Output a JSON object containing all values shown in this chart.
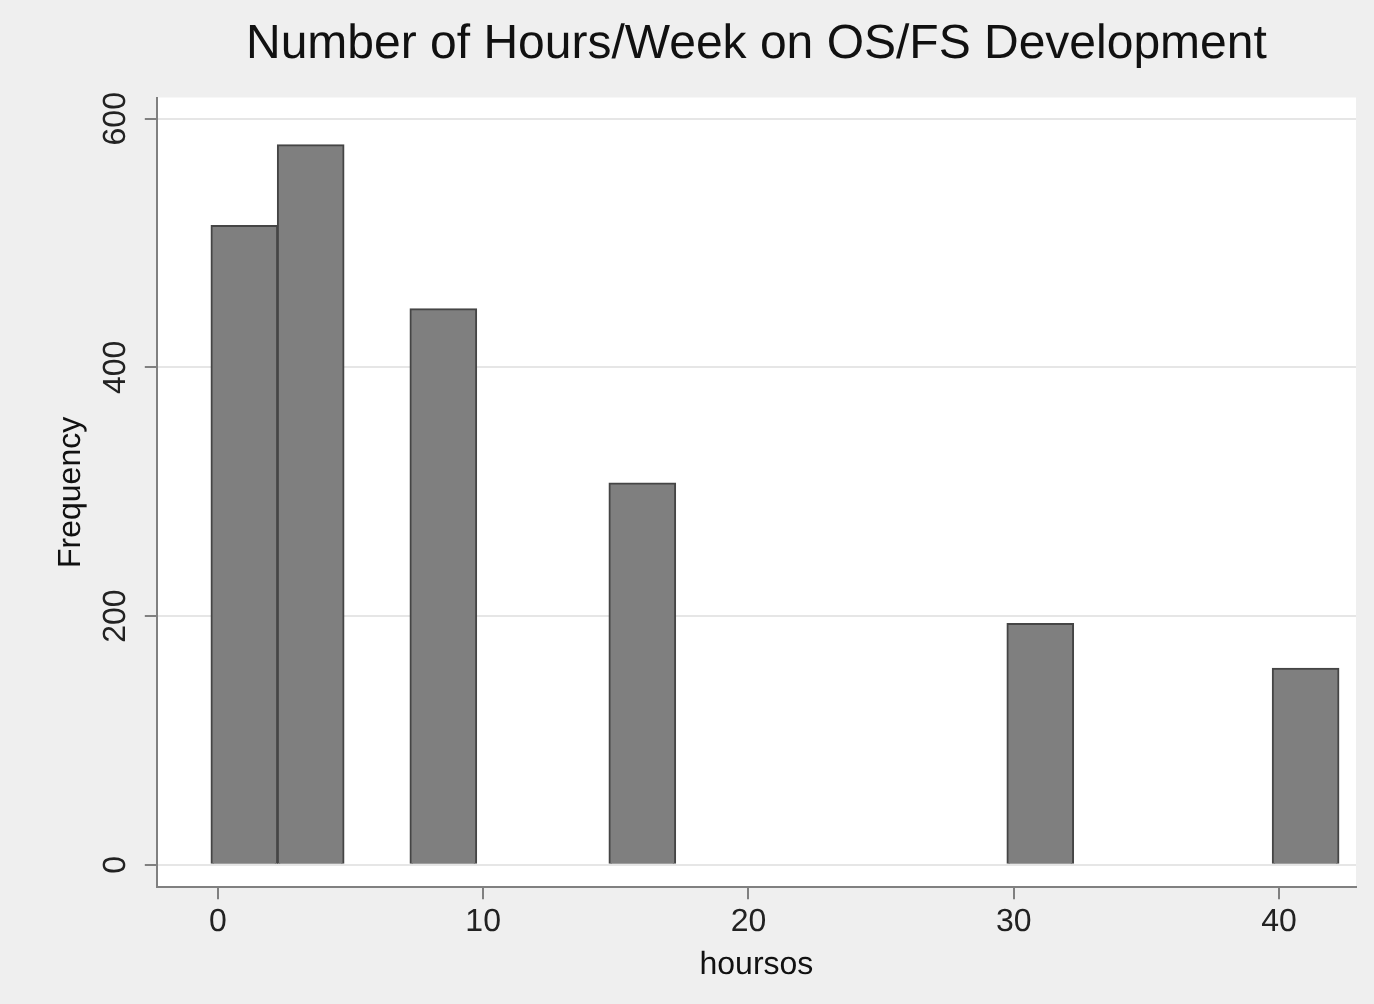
{
  "chart_data": {
    "type": "histogram",
    "title": "Number of Hours/Week on OS/FS Development",
    "xlabel": "hoursos",
    "ylabel": "Frequency",
    "bins": [
      -0.25,
      2.25,
      4.75,
      7.25,
      9.75,
      12.25,
      14.75,
      17.25,
      19.75,
      22.25,
      24.75,
      27.25,
      29.75,
      32.25,
      34.75,
      37.25,
      39.75,
      42.25
    ],
    "values": [
      514,
      579,
      0,
      447,
      0,
      0,
      307,
      0,
      0,
      0,
      0,
      0,
      194,
      0,
      0,
      0,
      158
    ],
    "color": "#7f7f7f",
    "xlim": [
      -2.3,
      42.9
    ],
    "ylim": [
      -18,
      617
    ],
    "xticks": [
      0,
      10,
      20,
      30,
      40
    ],
    "yticks": [
      0,
      200,
      400,
      600
    ],
    "grid": "y",
    "legend": false
  }
}
